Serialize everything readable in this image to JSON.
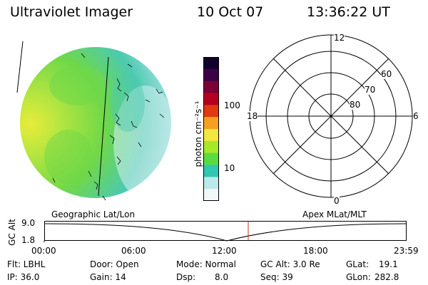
{
  "header": {
    "instrument": "Ultraviolet Imager",
    "date": "10 Oct 07",
    "time": "13:36:22 UT"
  },
  "colorbar": {
    "unit_label": "photon cm⁻²s⁻¹",
    "tick_100": "100",
    "tick_10": "10",
    "colors_top_to_bottom": [
      "#10002a",
      "#3b0044",
      "#7a0036",
      "#b50022",
      "#e03a10",
      "#f5a020",
      "#f2e640",
      "#a8e82a",
      "#5adc40",
      "#30c8b0",
      "#bde8ec",
      "#f0f8f8"
    ]
  },
  "polar_plot": {
    "label_12": "12",
    "label_18": "18",
    "label_6": "6",
    "label_0": "0",
    "ring_60": "60",
    "ring_70": "70",
    "ring_80": "80"
  },
  "timeline": {
    "left_title": "Geographic Lat/Lon",
    "right_title": "Apex MLat/MLT",
    "axis_label": "GC Alt",
    "y_top": "9.0",
    "y_bottom": "1.8",
    "x_ticks": [
      "00:00",
      "06:00",
      "12:00",
      "18:00",
      "23:59"
    ],
    "marker_color": "#d0321e"
  },
  "status": {
    "flt": "Flt: LBHL",
    "ip": "IP: 36.0",
    "door": "Door: Open",
    "gain": "Gain: 14",
    "mode": "Mode: Normal",
    "dsp_label": "Dsp:",
    "dsp_value": "8.0",
    "gc_alt": "GC Alt: 3.0 Re",
    "seq": "Seq: 39",
    "glat_label": "GLat:",
    "glat_value": "19.1",
    "glon_label": "GLon:",
    "glon_value": "282.8"
  },
  "image_palette": {
    "yellow": "#e8ec3a",
    "lightgreen": "#b6e640",
    "green": "#70d848",
    "teal": "#4ccab0",
    "cyan": "#90dcd8",
    "pale": "#d6eef0"
  }
}
